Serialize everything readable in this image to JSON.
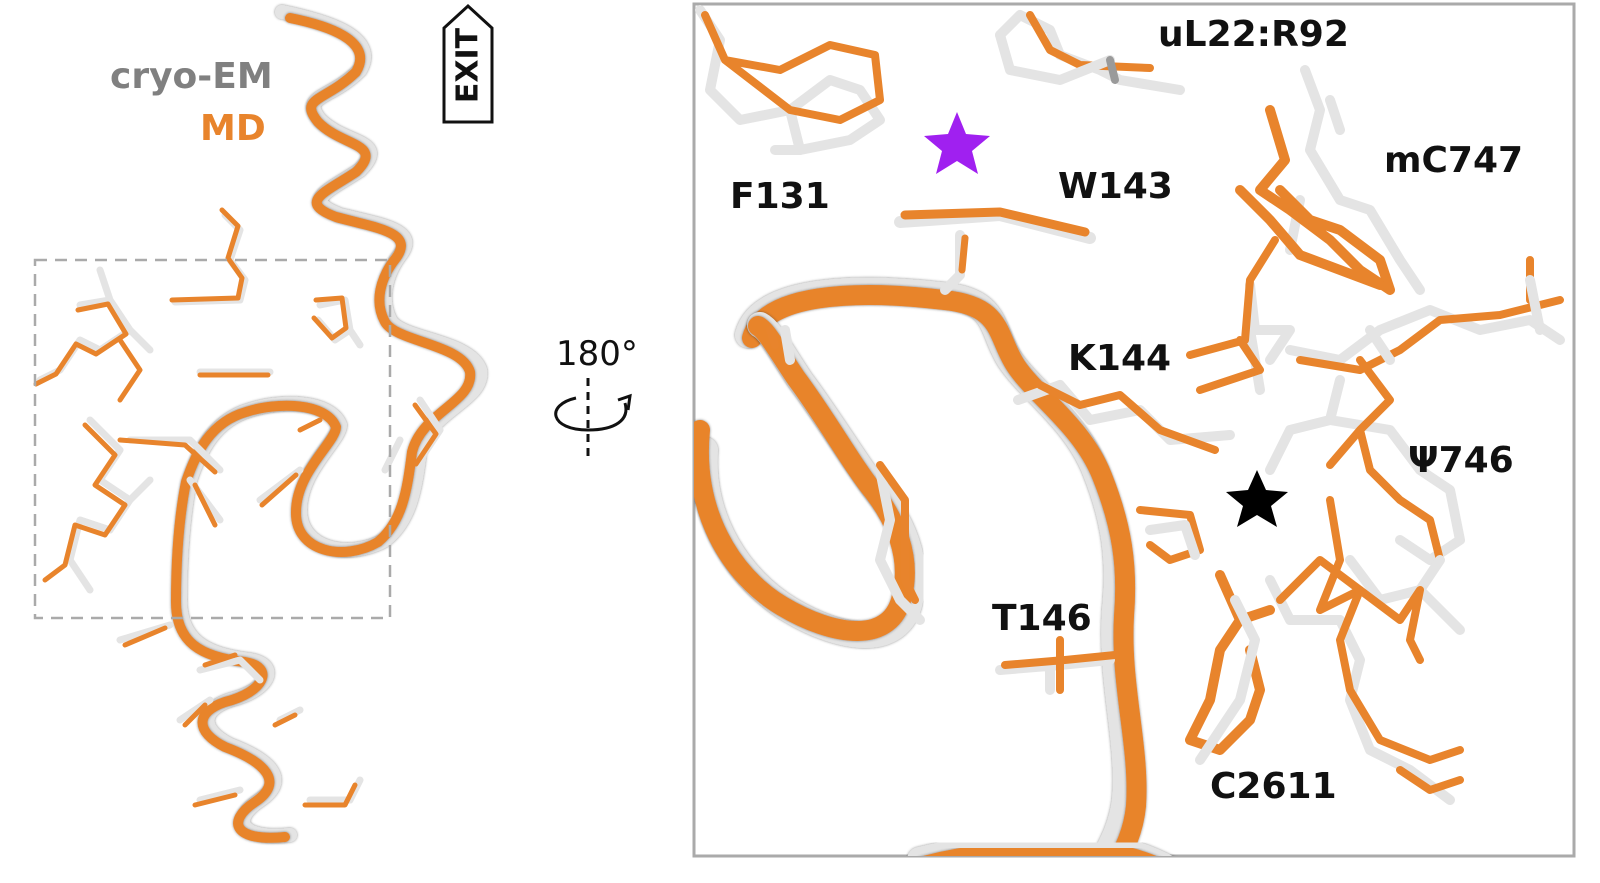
{
  "legend": {
    "cryo_em": "cryo-EM",
    "md": "MD"
  },
  "exit_label": "EXIT",
  "rotation_label": "180°",
  "residues": {
    "uL22_R92": "uL22:R92",
    "F131": "F131",
    "W143": "W143",
    "mC747": "mC747",
    "K144": "K144",
    "Psi746": "Ψ746",
    "T146": "T146",
    "C2611": "C2611"
  },
  "colors": {
    "cryo_em": "#e6e6e6",
    "cryo_em_label": "#808080",
    "md": "#e8842c",
    "box": "#aaaaaa",
    "purple_star": "#a020f0",
    "black_star": "#000000"
  },
  "markers": [
    "purple-star",
    "black-star"
  ]
}
